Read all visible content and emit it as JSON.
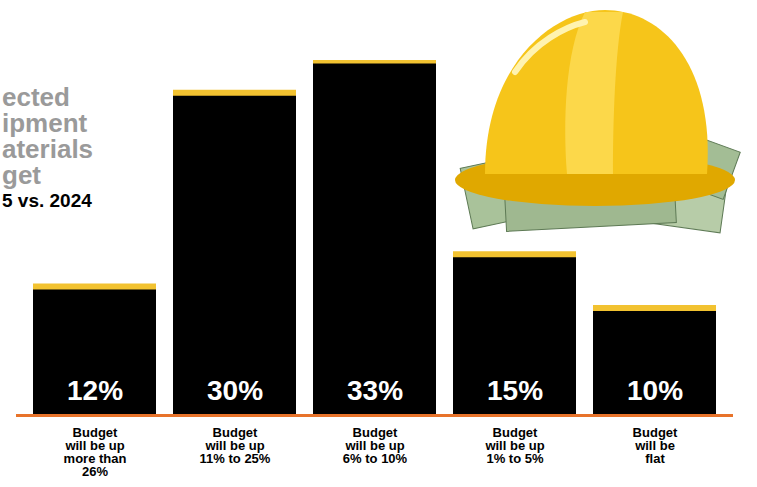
{
  "chart_data": {
    "type": "bar",
    "title": "ected\nipment\naterials\nget",
    "subtitle": "5 vs. 2024",
    "categories": [
      "Budget will be up more than 26%",
      "Budget will be up 11% to 25%",
      "Budget will be up 6% to 10%",
      "Budget will be up 1% to 5%",
      "Budget will be flat"
    ],
    "values": [
      12,
      30,
      33,
      15,
      10
    ],
    "value_labels": [
      "12%",
      "30%",
      "33%",
      "15%",
      "10%"
    ],
    "data_labels": true,
    "color": "#000000",
    "ylim": [
      0,
      33
    ],
    "yticks": [],
    "tick_labels": "x",
    "grid": false
  }
}
